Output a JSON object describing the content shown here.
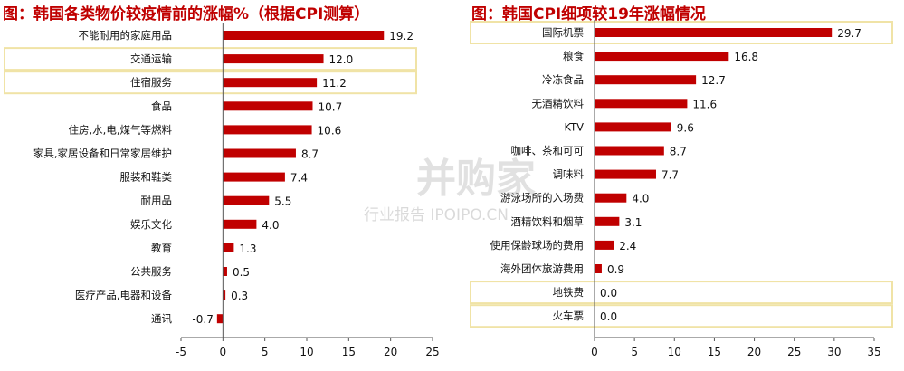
{
  "watermark": {
    "main": "并购家",
    "sub": "行业报告 IPOIPO.CN"
  },
  "chart_data": [
    {
      "type": "bar",
      "orientation": "horizontal",
      "title": "图：韩国各类物价较疫情前的涨幅%（根据CPI测算）",
      "categories": [
        "不能耐用的家庭用品",
        "交通运输",
        "住宿服务",
        "食品",
        "住房,水,电,煤气等燃料",
        "家具,家居设备和日常家居维护",
        "服装和鞋类",
        "耐用品",
        "娱乐文化",
        "教育",
        "公共服务",
        "医疗产品,电器和设备",
        "通讯"
      ],
      "values": [
        19.2,
        12.0,
        11.2,
        10.7,
        10.6,
        8.7,
        7.4,
        5.5,
        4.0,
        1.3,
        0.5,
        0.3,
        -0.7
      ],
      "value_labels": [
        "19.2",
        "12.0",
        "11.2",
        "10.7",
        "10.6",
        "8.7",
        "7.4",
        "5.5",
        "4.0",
        "1.3",
        "0.5",
        "0.3",
        "-0.7"
      ],
      "highlighted": [
        "交通运输",
        "住宿服务"
      ],
      "xlim": [
        -5,
        25
      ],
      "xticks": [
        "-5",
        "0",
        "5",
        "10",
        "15",
        "20",
        "25"
      ],
      "bar_color": "#c00000",
      "highlight_color": "#f0e3a6",
      "grid": false,
      "legend": "none"
    },
    {
      "type": "bar",
      "orientation": "horizontal",
      "title": "图：韩国CPI细项较19年涨幅情况",
      "categories": [
        "国际机票",
        "粮食",
        "冷冻食品",
        "无酒精饮料",
        "KTV",
        "咖啡、茶和可可",
        "调味料",
        "游泳场所的入场费",
        "酒精饮料和烟草",
        "使用保龄球场的费用",
        "海外团体旅游费用",
        "地铁费",
        "火车票"
      ],
      "values": [
        29.7,
        16.8,
        12.7,
        11.6,
        9.6,
        8.7,
        7.7,
        4.0,
        3.1,
        2.4,
        0.9,
        0.0,
        0.0
      ],
      "value_labels": [
        "29.7",
        "16.8",
        "12.7",
        "11.6",
        "9.6",
        "8.7",
        "7.7",
        "4.0",
        "3.1",
        "2.4",
        "0.9",
        "0.0",
        "0.0"
      ],
      "highlighted": [
        "国际机票",
        "地铁费",
        "火车票"
      ],
      "xlim": [
        0,
        35
      ],
      "xticks": [
        "0",
        "5",
        "10",
        "15",
        "20",
        "25",
        "30",
        "35"
      ],
      "bar_color": "#c00000",
      "highlight_color": "#f0e3a6",
      "grid": false,
      "legend": "none"
    }
  ]
}
